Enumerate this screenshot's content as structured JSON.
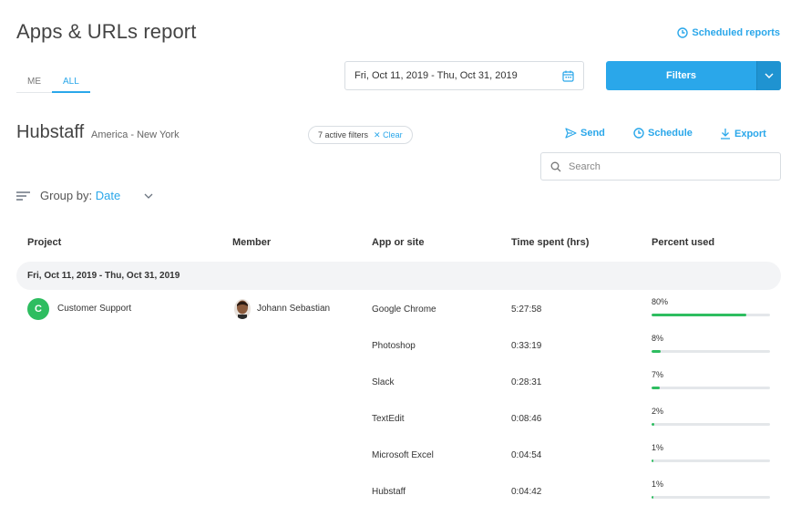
{
  "header": {
    "title": "Apps & URLs report",
    "scheduled_reports_label": "Scheduled reports"
  },
  "tabs": [
    {
      "label": "ME",
      "active": false
    },
    {
      "label": "ALL",
      "active": true
    }
  ],
  "date_range": {
    "value": "Fri, Oct 11, 2019 - Thu, Oct 31, 2019"
  },
  "filters_button": {
    "label": "Filters"
  },
  "org": {
    "name": "Hubstaff",
    "timezone": "America - New York"
  },
  "filter_chip": {
    "count_label": "7 active filters",
    "clear_label": "Clear"
  },
  "actions": {
    "send": "Send",
    "schedule": "Schedule",
    "export": "Export"
  },
  "search": {
    "placeholder": "Search"
  },
  "groupby": {
    "label": "Group by:",
    "value": "Date"
  },
  "table": {
    "headers": [
      "Project",
      "Member",
      "App or site",
      "Time spent (hrs)",
      "Percent used"
    ],
    "group_label": "Fri, Oct 11, 2019 - Thu, Oct 31, 2019",
    "project": {
      "initial": "C",
      "name": "Customer Support"
    },
    "member": {
      "name": "Johann Sebastian"
    },
    "rows": [
      {
        "app": "Google Chrome",
        "time": "5:27:58",
        "percent": "80%",
        "fraction": 0.8
      },
      {
        "app": "Photoshop",
        "time": "0:33:19",
        "percent": "8%",
        "fraction": 0.08
      },
      {
        "app": "Slack",
        "time": "0:28:31",
        "percent": "7%",
        "fraction": 0.07
      },
      {
        "app": "TextEdit",
        "time": "0:08:46",
        "percent": "2%",
        "fraction": 0.02
      },
      {
        "app": "Microsoft Excel",
        "time": "0:04:54",
        "percent": "1%",
        "fraction": 0.01
      },
      {
        "app": "Hubstaff",
        "time": "0:04:42",
        "percent": "1%",
        "fraction": 0.01
      }
    ]
  },
  "colors": {
    "accent": "#2aa7ea",
    "success": "#2ebd60"
  }
}
